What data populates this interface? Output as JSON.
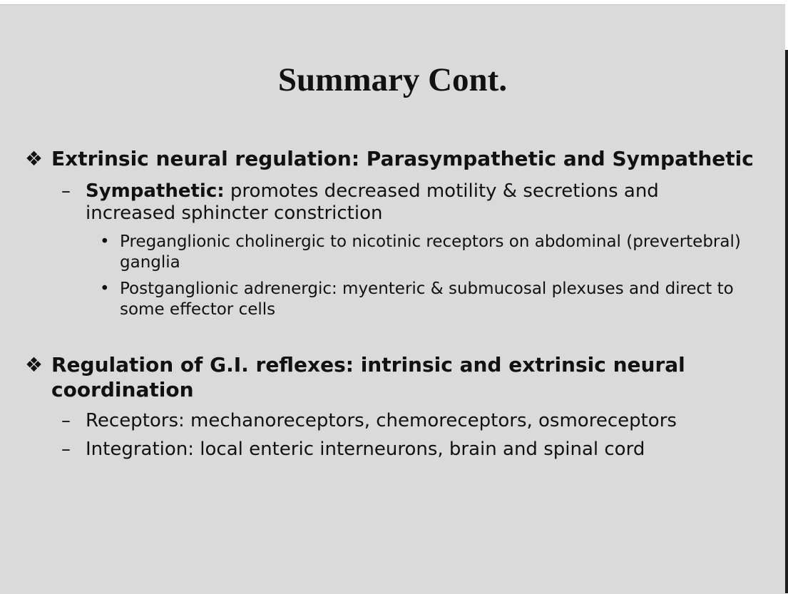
{
  "title": "Summary Cont.",
  "bullet_glyph": "❖",
  "dash_glyph": "–",
  "dot_glyph": "•",
  "sections": [
    {
      "heading": "Extrinsic neural regulation: Parasympathetic and Sympathetic",
      "items": [
        {
          "label": "Sympathetic:",
          "text": " promotes decreased motility & secretions and increased sphincter constriction",
          "subitems": [
            "Preganglionic cholinergic to nicotinic receptors on abdominal (prevertebral) ganglia",
            "Postganglionic adrenergic: myenteric & submucosal plexuses and direct to some effector cells"
          ]
        }
      ]
    },
    {
      "heading": "Regulation of G.I. reflexes: intrinsic and extrinsic neural coordination",
      "items": [
        {
          "text": "Receptors: mechanoreceptors, chemoreceptors, osmoreceptors"
        },
        {
          "text": "Integration: local enteric interneurons, brain and spinal cord"
        }
      ]
    }
  ]
}
